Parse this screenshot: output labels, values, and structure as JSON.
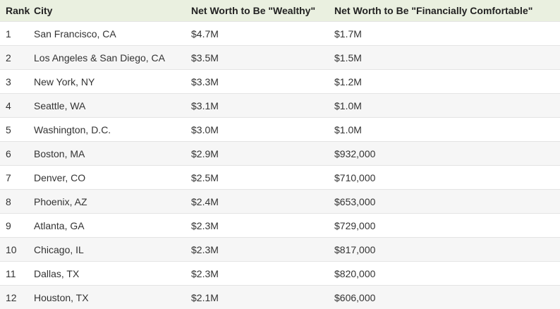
{
  "table": {
    "header": [
      "Rank",
      "City",
      "Net Worth to Be \"Wealthy\"",
      "Net Worth to Be \"Financially Comfortable\""
    ],
    "rows": [
      [
        "1",
        "San Francisco, CA",
        "$4.7M",
        "$1.7M"
      ],
      [
        "2",
        "Los Angeles & San Diego, CA",
        "$3.5M",
        "$1.5M"
      ],
      [
        "3",
        "New York, NY",
        "$3.3M",
        "$1.2M"
      ],
      [
        "4",
        "Seattle, WA",
        "$3.1M",
        "$1.0M"
      ],
      [
        "5",
        "Washington, D.C.",
        "$3.0M",
        "$1.0M"
      ],
      [
        "6",
        "Boston, MA",
        "$2.9M",
        "$932,000"
      ],
      [
        "7",
        "Denver, CO",
        "$2.5M",
        "$710,000"
      ],
      [
        "8",
        "Phoenix, AZ",
        "$2.4M",
        "$653,000"
      ],
      [
        "9",
        "Atlanta, GA",
        "$2.3M",
        "$729,000"
      ],
      [
        "10",
        "Chicago, IL",
        "$2.3M",
        "$817,000"
      ],
      [
        "11",
        "Dallas, TX",
        "$2.3M",
        "$820,000"
      ],
      [
        "12",
        "Houston, TX",
        "$2.1M",
        "$606,000"
      ]
    ]
  }
}
